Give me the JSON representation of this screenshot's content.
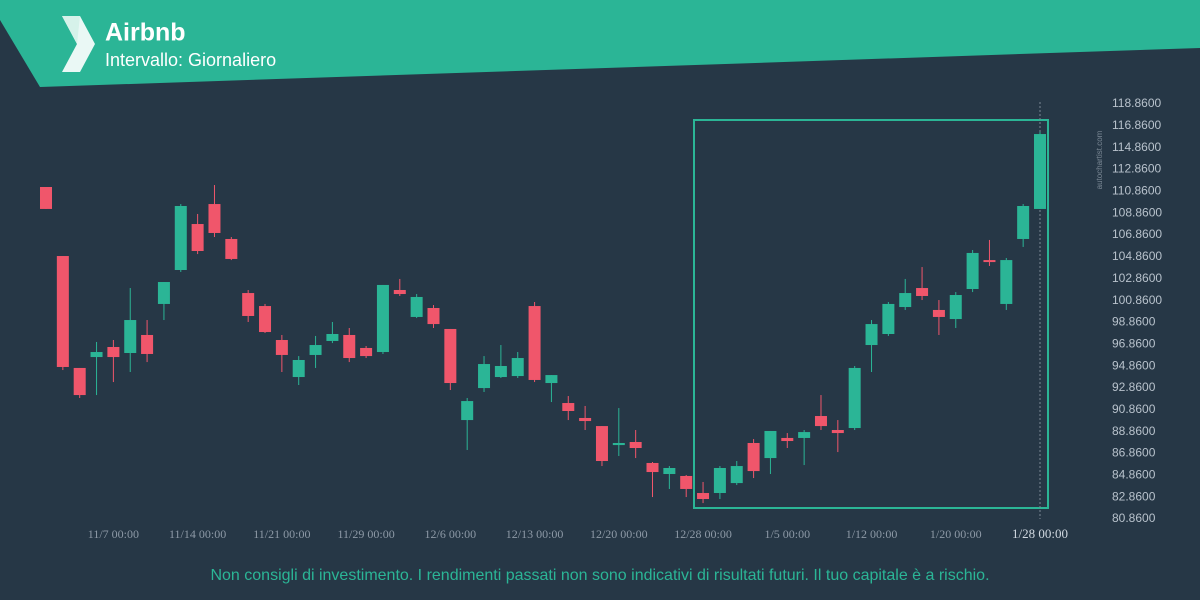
{
  "chart_data": {
    "type": "candlestick",
    "title": "Airbnb",
    "subtitle": "Intervallo: Giornaliero",
    "footer": "Non consigli di investimento. I rendimenti passati non sono indicativi di risultati futuri. Il tuo capitale è a rischio.",
    "watermark": "autochartist.com",
    "up_color": "#2bb596",
    "down_color": "#f0566b",
    "grid": false,
    "categories": [
      null,
      null,
      null,
      null,
      "11/7 00:00",
      null,
      null,
      null,
      null,
      "11/14 00:00",
      null,
      null,
      null,
      null,
      "11/21 00:00",
      null,
      null,
      null,
      null,
      "11/29 00:00",
      null,
      null,
      null,
      null,
      "12/6 00:00",
      null,
      null,
      null,
      null,
      "12/13 00:00",
      null,
      null,
      null,
      null,
      "12/20 00:00",
      null,
      null,
      null,
      null,
      "12/28 00:00",
      null,
      null,
      null,
      null,
      "1/5 00:00",
      null,
      null,
      null,
      null,
      "1/12 00:00",
      null,
      null,
      null,
      null,
      "1/20 00:00",
      null,
      null,
      null,
      null,
      "1/28 00:00"
    ],
    "open": [
      111.26,
      104.94,
      94.69,
      95.69,
      96.61,
      96.06,
      97.71,
      100.55,
      103.66,
      107.87,
      109.7,
      106.5,
      101.55,
      100.36,
      97.25,
      93.86,
      95.88,
      97.16,
      97.71,
      96.52,
      96.15,
      101.83,
      99.36,
      100.18,
      98.26,
      89.92,
      92.85,
      93.86,
      93.95,
      100.36,
      93.31,
      91.48,
      90.11,
      89.37,
      87.63,
      87.91,
      85.99,
      84.98,
      84.8,
      83.24,
      83.24,
      84.15,
      87.82,
      86.44,
      88.28,
      88.28,
      90.29,
      89.01,
      89.19,
      96.79,
      97.8,
      100.27,
      102.01,
      100.0,
      99.17,
      101.92,
      104.57,
      100.55,
      106.5,
      109.25
    ],
    "high": [
      111.26,
      104.94,
      94.69,
      97.07,
      97.25,
      102.01,
      99.08,
      102.56,
      109.7,
      108.79,
      111.44,
      106.68,
      101.83,
      100.55,
      97.71,
      95.78,
      97.62,
      98.9,
      98.35,
      96.7,
      102.29,
      102.84,
      101.46,
      100.45,
      98.26,
      91.94,
      95.78,
      96.79,
      96.15,
      100.73,
      94.04,
      92.12,
      91.21,
      89.37,
      91.02,
      89.01,
      86.08,
      85.71,
      84.89,
      84.25,
      85.71,
      86.17,
      88.18,
      88.92,
      88.73,
      89.01,
      92.21,
      89.92,
      94.87,
      99.08,
      100.73,
      102.84,
      103.93,
      100.91,
      101.64,
      105.49,
      106.41,
      104.76,
      109.7,
      116.3
    ],
    "low": [
      109.25,
      94.5,
      91.94,
      92.21,
      93.4,
      94.32,
      95.23,
      99.08,
      103.48,
      105.12,
      106.68,
      104.57,
      98.9,
      97.89,
      94.32,
      93.13,
      94.69,
      96.97,
      95.23,
      95.6,
      95.97,
      101.28,
      99.26,
      98.35,
      92.67,
      87.18,
      92.49,
      93.77,
      93.77,
      93.4,
      91.57,
      89.92,
      89.01,
      85.71,
      86.63,
      86.44,
      82.87,
      83.61,
      82.87,
      82.32,
      82.69,
      83.97,
      84.61,
      84.98,
      87.36,
      85.8,
      89.01,
      86.99,
      89.01,
      94.32,
      97.62,
      100.0,
      100.91,
      97.71,
      98.35,
      101.64,
      104.03,
      100.0,
      105.77,
      109.25
    ],
    "close": [
      109.25,
      94.78,
      92.21,
      96.15,
      95.69,
      99.08,
      95.97,
      102.56,
      109.52,
      105.4,
      107.05,
      104.67,
      99.45,
      97.98,
      95.88,
      95.42,
      96.79,
      97.8,
      95.6,
      95.78,
      102.29,
      101.46,
      101.19,
      98.71,
      93.31,
      91.66,
      95.05,
      94.87,
      95.6,
      93.59,
      94.04,
      90.75,
      89.83,
      86.17,
      87.82,
      87.36,
      85.16,
      85.53,
      83.61,
      82.69,
      85.53,
      85.71,
      85.25,
      88.92,
      88.0,
      88.82,
      89.37,
      88.73,
      94.69,
      98.71,
      100.55,
      101.55,
      101.28,
      99.36,
      101.37,
      105.22,
      104.39,
      104.57,
      109.52,
      116.11
    ],
    "ylim": [
      80.86,
      118.86
    ],
    "yticks": [
      {
        "value": 80.86,
        "label": "80.8600"
      },
      {
        "value": 82.86,
        "label": "82.8600"
      },
      {
        "value": 84.86,
        "label": "84.8600"
      },
      {
        "value": 86.86,
        "label": "86.8600"
      },
      {
        "value": 88.86,
        "label": "88.8600"
      },
      {
        "value": 90.86,
        "label": "90.8600"
      },
      {
        "value": 92.86,
        "label": "92.8600"
      },
      {
        "value": 94.86,
        "label": "94.8600"
      },
      {
        "value": 96.86,
        "label": "96.8600"
      },
      {
        "value": 98.86,
        "label": "98.8600"
      },
      {
        "value": 100.86,
        "label": "100.8600"
      },
      {
        "value": 102.86,
        "label": "102.8600"
      },
      {
        "value": 104.86,
        "label": "104.8600"
      },
      {
        "value": 106.86,
        "label": "106.8600"
      },
      {
        "value": 108.86,
        "label": "108.8600"
      },
      {
        "value": 110.86,
        "label": "110.8600"
      },
      {
        "value": 112.86,
        "label": "112.8600"
      },
      {
        "value": 114.86,
        "label": "114.8600"
      },
      {
        "value": 116.86,
        "label": "116.8600"
      },
      {
        "value": 118.86,
        "label": "118.8600"
      }
    ]
  }
}
